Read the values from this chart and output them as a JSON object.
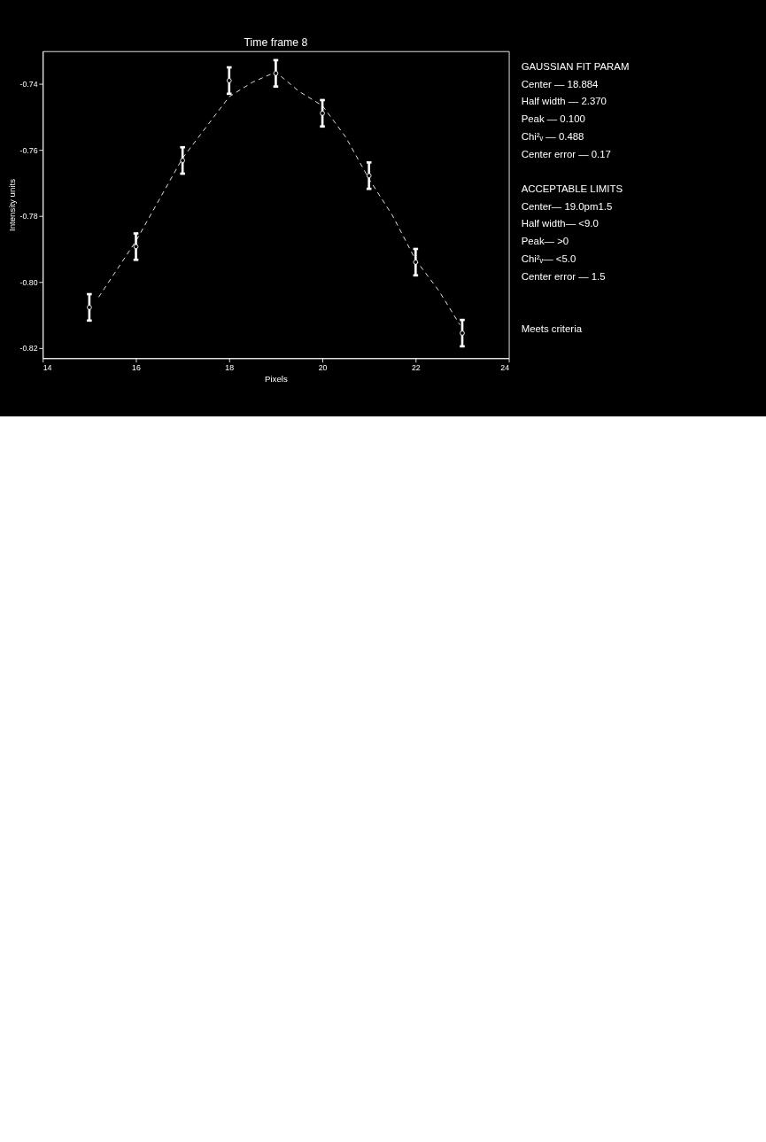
{
  "chart_data": {
    "type": "scatter",
    "title": "Time frame 8",
    "xlabel": "Pixels",
    "ylabel": "Intensity units",
    "xlim": [
      14,
      24
    ],
    "xticks": [
      14,
      16,
      18,
      20,
      22,
      24
    ],
    "ylim": [
      -0.823,
      -0.73
    ],
    "yticks": [
      -0.74,
      -0.76,
      -0.78,
      {
        "value": -0.8,
        "label": "-0.80"
      },
      -0.82
    ],
    "grid": false,
    "series": [
      {
        "color": "#ffffff",
        "marker": "circle",
        "x": [
          15,
          16,
          17,
          18,
          19,
          20,
          21,
          22,
          23
        ],
        "values": [
          -0.8076,
          -0.7892,
          -0.7631,
          -0.7389,
          -0.7367,
          -0.7488,
          -0.7677,
          -0.7939,
          -0.8154
        ],
        "errors": [
          0.004,
          0.004,
          0.004,
          0.004,
          0.004,
          0.004,
          0.004,
          0.004,
          0.004
        ]
      },
      {
        "type": "line",
        "color": "#ffffff",
        "line_style": "dashed",
        "marker": "none",
        "x": [
          15.2,
          16,
          17,
          18,
          18.5,
          19,
          19.5,
          20,
          20.5,
          21,
          21.5,
          22,
          22.5,
          22.95
        ],
        "values": [
          -0.8045,
          -0.7875,
          -0.7624,
          -0.7438,
          -0.7394,
          -0.7363,
          -0.7422,
          -0.7465,
          -0.756,
          -0.7687,
          -0.7797,
          -0.7932,
          -0.8026,
          -0.8129
        ]
      }
    ],
    "annotations": [
      "GAUSSIAN FIT PARAM",
      "Center — 18.884",
      "Half width — 2.370",
      "Peak — 0.100",
      "Chi²ᵥ — 0.488",
      "Center error — 0.17",
      "ACCEPTABLE LIMITS",
      "Center— 19.0pm1.5",
      "Half width— <9.0",
      "Peak— >0",
      "Chi²ᵥ— <5.0",
      "Center error — 1.5",
      "Meets criteria"
    ]
  }
}
